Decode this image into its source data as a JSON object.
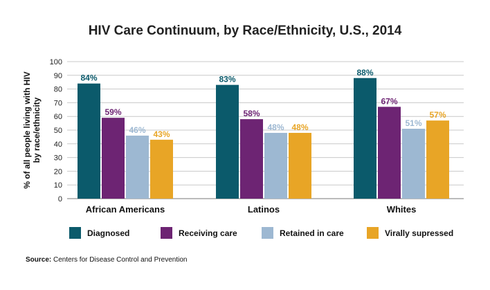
{
  "chart_data": {
    "type": "bar",
    "title": "HIV Care Continuum, by Race/Ethnicity, U.S., 2014",
    "ylabel_lines": [
      "% of all people living with HIV",
      "by race/ethnicity"
    ],
    "xlabel": "",
    "ylim": [
      0,
      100
    ],
    "yticks": [
      0,
      10,
      20,
      30,
      40,
      50,
      60,
      70,
      80,
      90,
      100
    ],
    "grid": true,
    "legend_position": "bottom",
    "categories": [
      "African Americans",
      "Latinos",
      "Whites"
    ],
    "series": [
      {
        "name": "Diagnosed",
        "color": "#0b5a6b",
        "label_color": "#0b5a6b",
        "values": [
          84,
          83,
          88
        ],
        "labels": [
          "84%",
          "83%",
          "88%"
        ]
      },
      {
        "name": "Receiving care",
        "color": "#6d2473",
        "label_color": "#6d2473",
        "values": [
          59,
          58,
          67
        ],
        "labels": [
          "59%",
          "58%",
          "67%"
        ]
      },
      {
        "name": "Retained in care",
        "color": "#9db8d2",
        "label_color": "#9db8d2",
        "values": [
          46,
          48,
          51
        ],
        "labels": [
          "46%",
          "48%",
          "51%"
        ]
      },
      {
        "name": "Virally supressed",
        "color": "#e8a526",
        "label_color": "#e8a526",
        "values": [
          43,
          48,
          57
        ],
        "labels": [
          "43%",
          "48%",
          "57%"
        ]
      }
    ]
  },
  "source": {
    "label": "Source:",
    "text": " Centers for Disease Control and Prevention"
  }
}
